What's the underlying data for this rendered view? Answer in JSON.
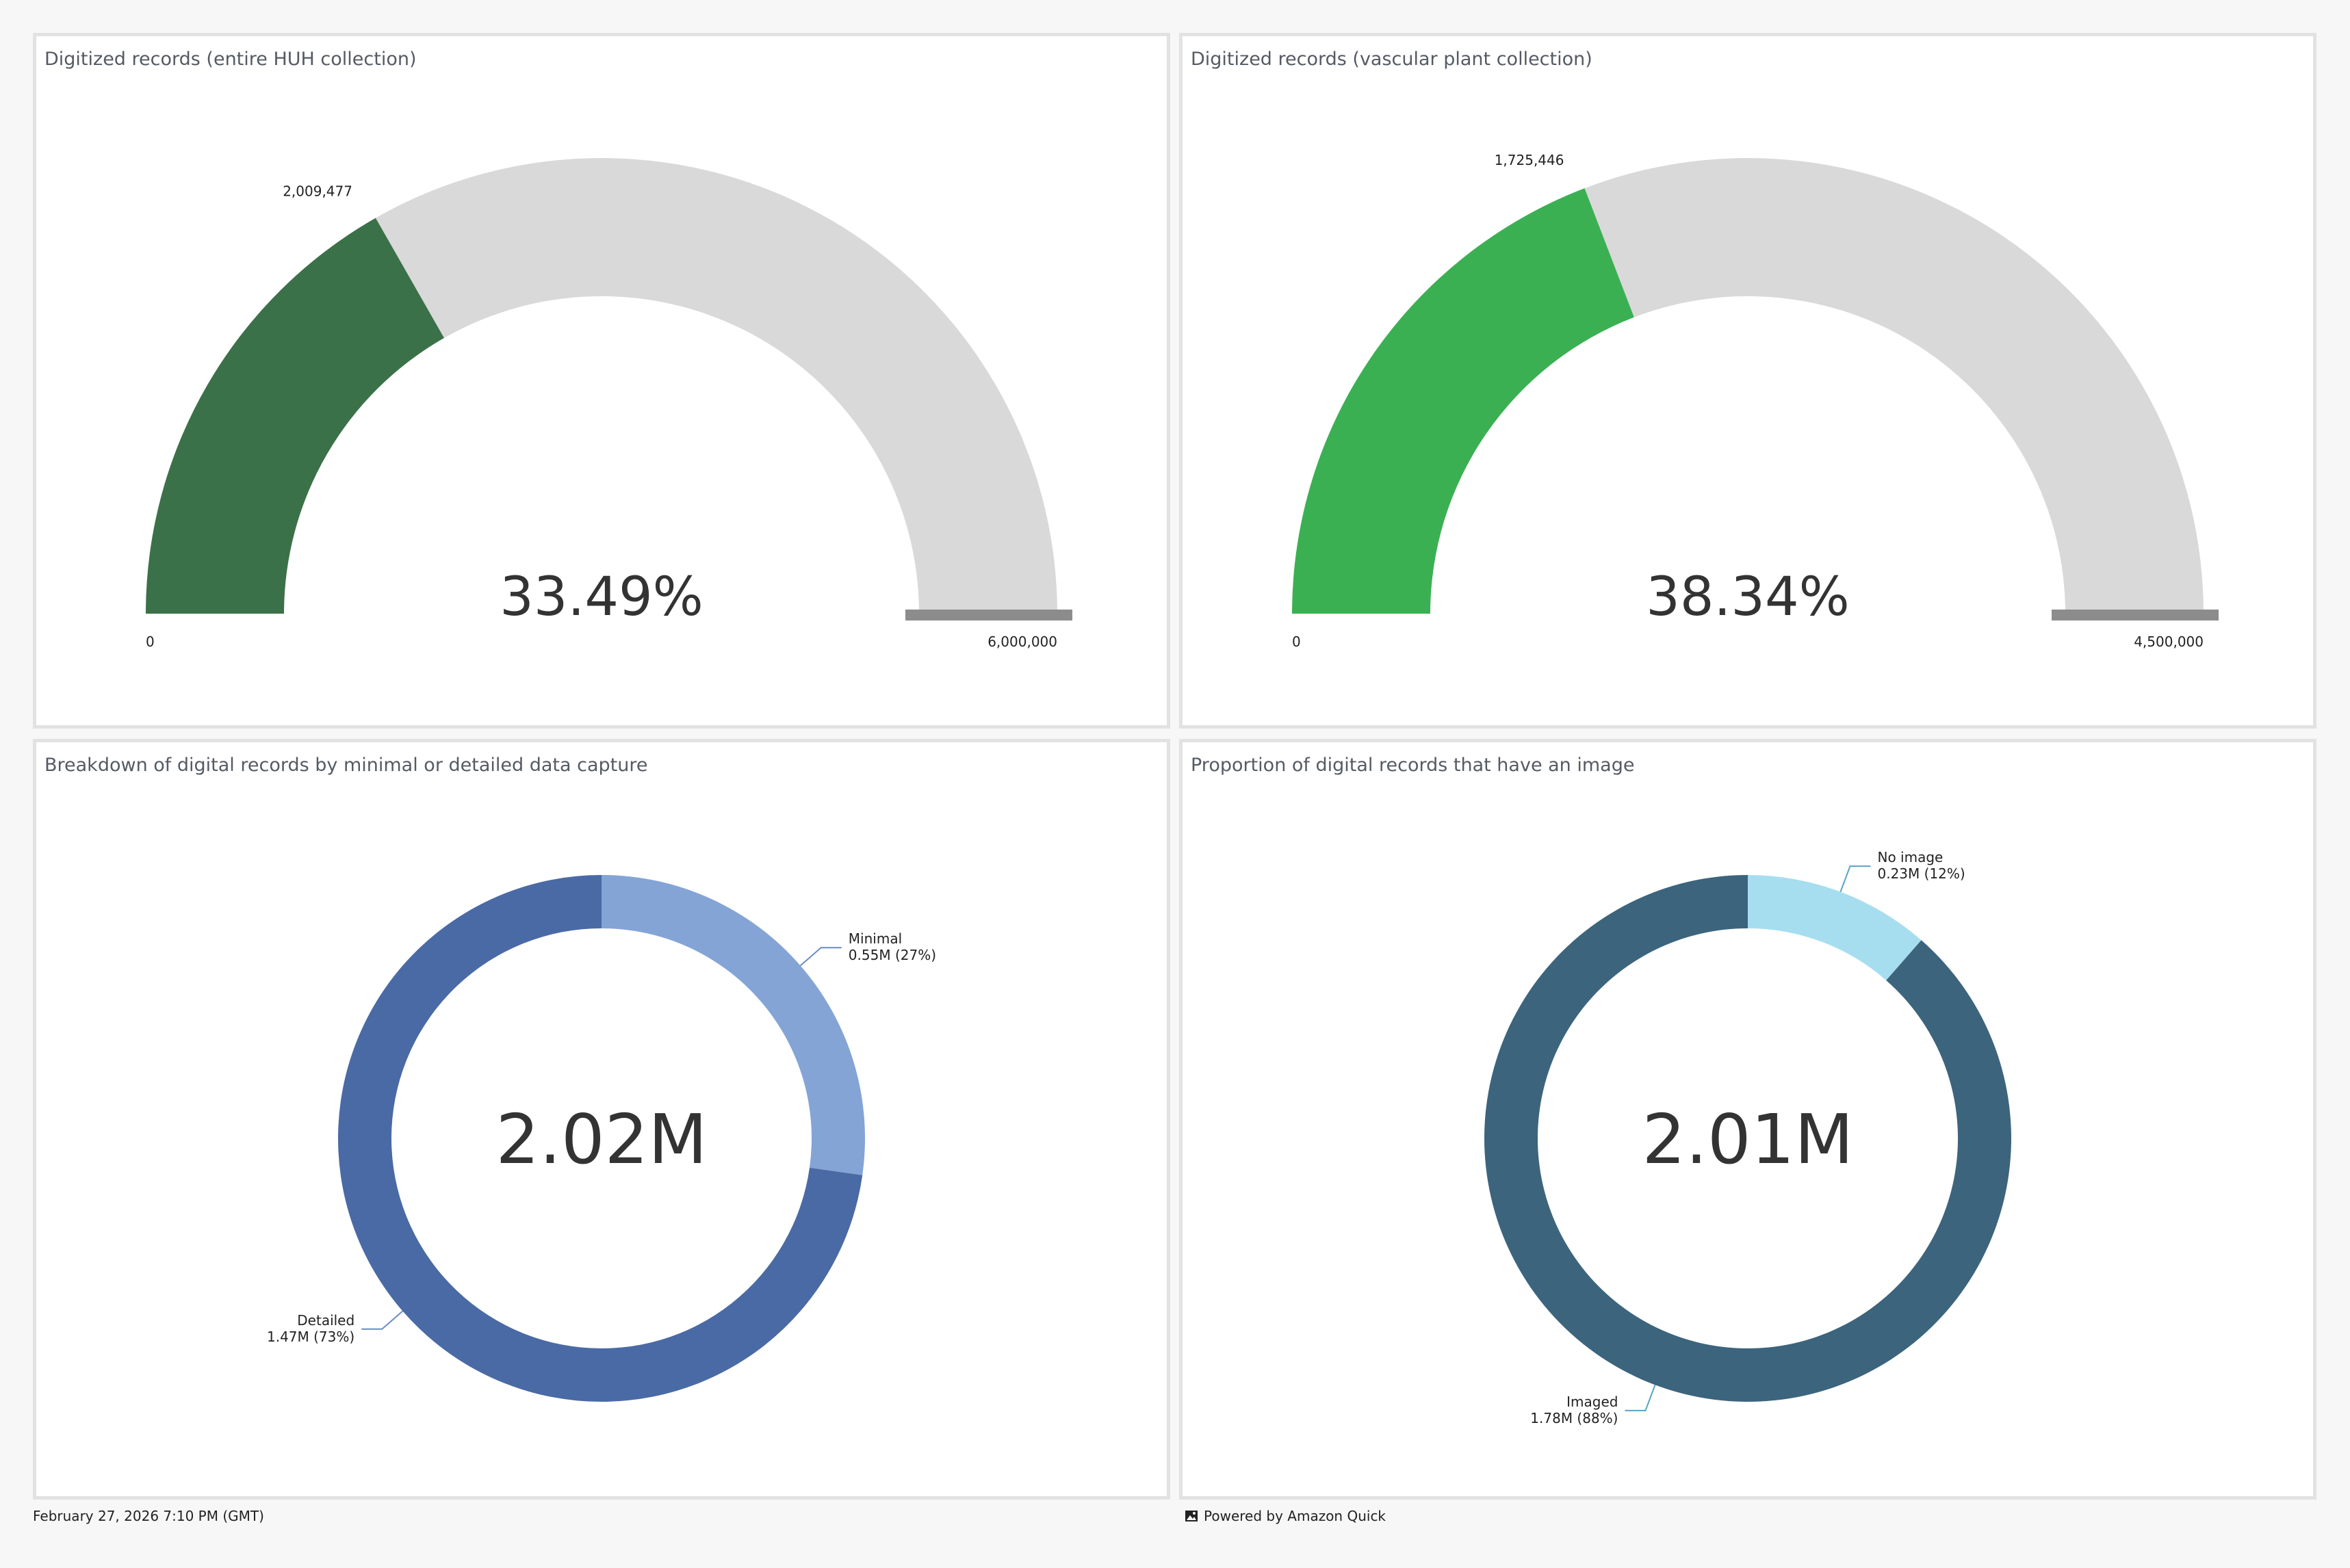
{
  "colors": {
    "gauge1_fill": "#3b7148",
    "gauge2_fill": "#3bb053",
    "gauge_track": "#d9d9d9",
    "gauge_cap": "#8c8c8c",
    "donut1_detailed": "#4a6aa5",
    "donut1_minimal": "#84a4d6",
    "donut2_imaged": "#3c647d",
    "donut2_noimage": "#a6def0",
    "leader_donut1": "#6a8cc6",
    "leader_donut2": "#5aa3c4"
  },
  "footer": {
    "date": "February 27, 2026 7:10 PM (GMT)",
    "powered_by": "Powered by Amazon Quick",
    "powered_icon": "image-icon"
  },
  "chart_data": [
    {
      "type": "gauge",
      "title": "Digitized records (entire HUH collection)",
      "value": 2009477,
      "value_label": "2,009,477",
      "min": 0,
      "max": 6000000,
      "min_label": "0",
      "max_label": "6,000,000",
      "center_label": "33.49%"
    },
    {
      "type": "gauge",
      "title": "Digitized records (vascular plant collection)",
      "value": 1725446,
      "value_label": "1,725,446",
      "min": 0,
      "max": 4500000,
      "min_label": "0",
      "max_label": "4,500,000",
      "center_label": "38.34%"
    },
    {
      "type": "pie",
      "title": "Breakdown of digital records by minimal or detailed data capture",
      "center_label": "2.02M",
      "slices": [
        {
          "name": "Minimal",
          "value": 0.55,
          "percent": 27,
          "label": "0.55M (27%)"
        },
        {
          "name": "Detailed",
          "value": 1.47,
          "percent": 73,
          "label": "1.47M (73%)"
        }
      ]
    },
    {
      "type": "pie",
      "title": "Proportion of digital records that have an image",
      "center_label": "2.01M",
      "slices": [
        {
          "name": "No image",
          "value": 0.23,
          "percent": 12,
          "label": "0.23M (12%)"
        },
        {
          "name": "Imaged",
          "value": 1.78,
          "percent": 88,
          "label": "1.78M (88%)"
        }
      ]
    }
  ]
}
